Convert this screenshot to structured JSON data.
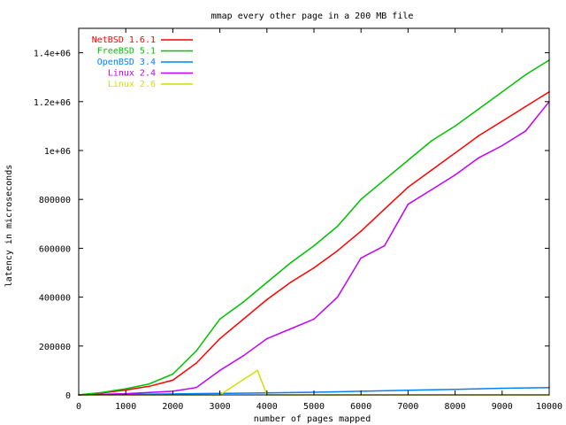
{
  "chart_data": {
    "type": "line",
    "title": "mmap every other page in a 200 MB file",
    "xlabel": "number of pages mapped",
    "ylabel": "latency in microseconds",
    "xlim": [
      0,
      10000
    ],
    "ylim": [
      0,
      1500000
    ],
    "xticks": [
      0,
      1000,
      2000,
      3000,
      4000,
      5000,
      6000,
      7000,
      8000,
      9000,
      10000
    ],
    "yticks": [
      0,
      200000,
      400000,
      600000,
      800000,
      1000000,
      1200000,
      1400000
    ],
    "ytick_labels": [
      "0",
      "200000",
      "400000",
      "600000",
      "800000",
      "1e+06",
      "1.2e+06",
      "1.4e+06"
    ],
    "grid": false,
    "legend_position": "top-left",
    "series": [
      {
        "name": "NetBSD 1.6.1",
        "color": "#ff0000",
        "x": [
          0,
          500,
          1000,
          1500,
          2000,
          2500,
          3000,
          3500,
          4000,
          4500,
          5000,
          5500,
          6000,
          6500,
          7000,
          7500,
          8000,
          8500,
          9000,
          9500,
          10000
        ],
        "y": [
          0,
          8000,
          20000,
          35000,
          60000,
          130000,
          230000,
          310000,
          390000,
          460000,
          520000,
          590000,
          670000,
          760000,
          850000,
          920000,
          990000,
          1060000,
          1120000,
          1180000,
          1240000
        ]
      },
      {
        "name": "FreeBSD 5.1",
        "color": "#00c000",
        "x": [
          0,
          500,
          1000,
          1500,
          2000,
          2500,
          3000,
          3500,
          4000,
          4500,
          5000,
          5500,
          6000,
          6500,
          7000,
          7500,
          8000,
          8500,
          9000,
          9500,
          10000
        ],
        "y": [
          0,
          10000,
          25000,
          45000,
          85000,
          180000,
          310000,
          380000,
          460000,
          540000,
          610000,
          690000,
          800000,
          880000,
          960000,
          1040000,
          1100000,
          1170000,
          1240000,
          1310000,
          1370000
        ]
      },
      {
        "name": "OpenBSD 3.4",
        "color": "#0080ff",
        "x": [
          0,
          1000,
          2000,
          3000,
          4000,
          5000,
          6000,
          7000,
          8000,
          9000,
          10000
        ],
        "y": [
          1000,
          2000,
          4000,
          6000,
          8000,
          11000,
          15000,
          19000,
          23000,
          27000,
          30000
        ]
      },
      {
        "name": "Linux 2.4",
        "color": "#c000ff",
        "x": [
          0,
          500,
          1000,
          1500,
          2000,
          2500,
          3000,
          3500,
          4000,
          4500,
          5000,
          5500,
          6000,
          6500,
          7000,
          7500,
          8000,
          8500,
          9000,
          9500,
          10000
        ],
        "y": [
          0,
          2000,
          5000,
          10000,
          15000,
          30000,
          100000,
          160000,
          230000,
          270000,
          310000,
          400000,
          560000,
          610000,
          780000,
          840000,
          900000,
          970000,
          1020000,
          1080000,
          1200000
        ]
      },
      {
        "name": "Linux 2.6",
        "color": "#d0e000",
        "x": [
          0,
          1000,
          2000,
          3000,
          3800,
          4000,
          5000,
          6000,
          7000,
          8000,
          9000,
          10000
        ],
        "y": [
          0,
          0,
          0,
          0,
          100000,
          0,
          0,
          0,
          0,
          0,
          0,
          0
        ]
      }
    ]
  }
}
